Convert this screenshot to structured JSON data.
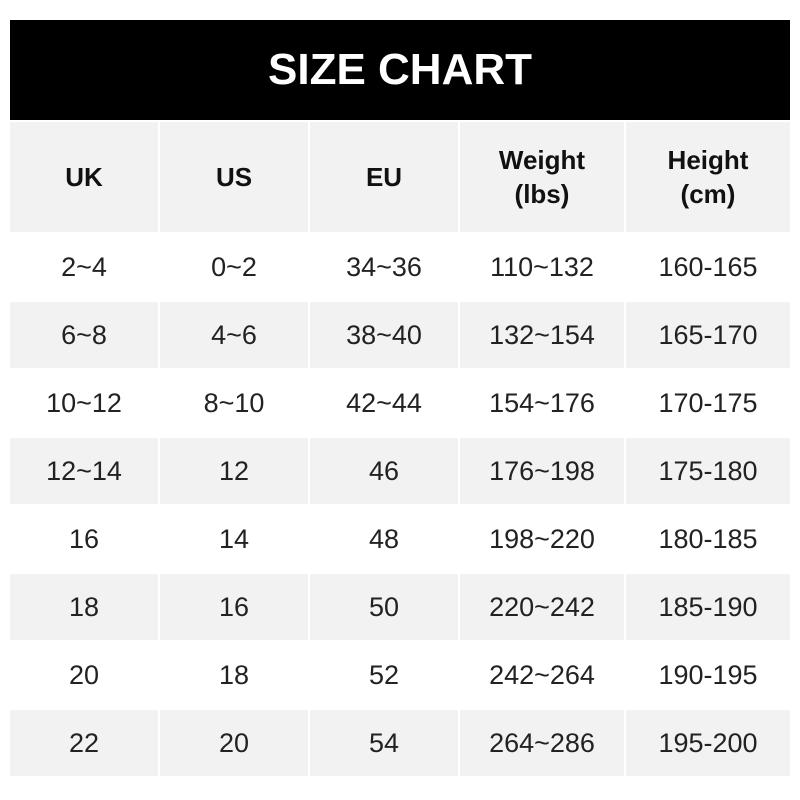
{
  "title": "SIZE CHART",
  "headers": [
    [
      "UK",
      ""
    ],
    [
      "US",
      ""
    ],
    [
      "EU",
      ""
    ],
    [
      "Weight",
      "(lbs)"
    ],
    [
      "Height",
      "(cm)"
    ]
  ],
  "rows": [
    [
      "2~4",
      "0~2",
      "34~36",
      "110~132",
      "160-165"
    ],
    [
      "6~8",
      "4~6",
      "38~40",
      "132~154",
      "165-170"
    ],
    [
      "10~12",
      "8~10",
      "42~44",
      "154~176",
      "170-175"
    ],
    [
      "12~14",
      "12",
      "46",
      "176~198",
      "175-180"
    ],
    [
      "16",
      "14",
      "48",
      "198~220",
      "180-185"
    ],
    [
      "18",
      "16",
      "50",
      "220~242",
      "185-190"
    ],
    [
      "20",
      "18",
      "52",
      "242~264",
      "190-195"
    ],
    [
      "22",
      "20",
      "54",
      "264~286",
      "195-200"
    ]
  ],
  "colors": {
    "header_bg": "#000000",
    "stripe": "#f2f2f2"
  }
}
